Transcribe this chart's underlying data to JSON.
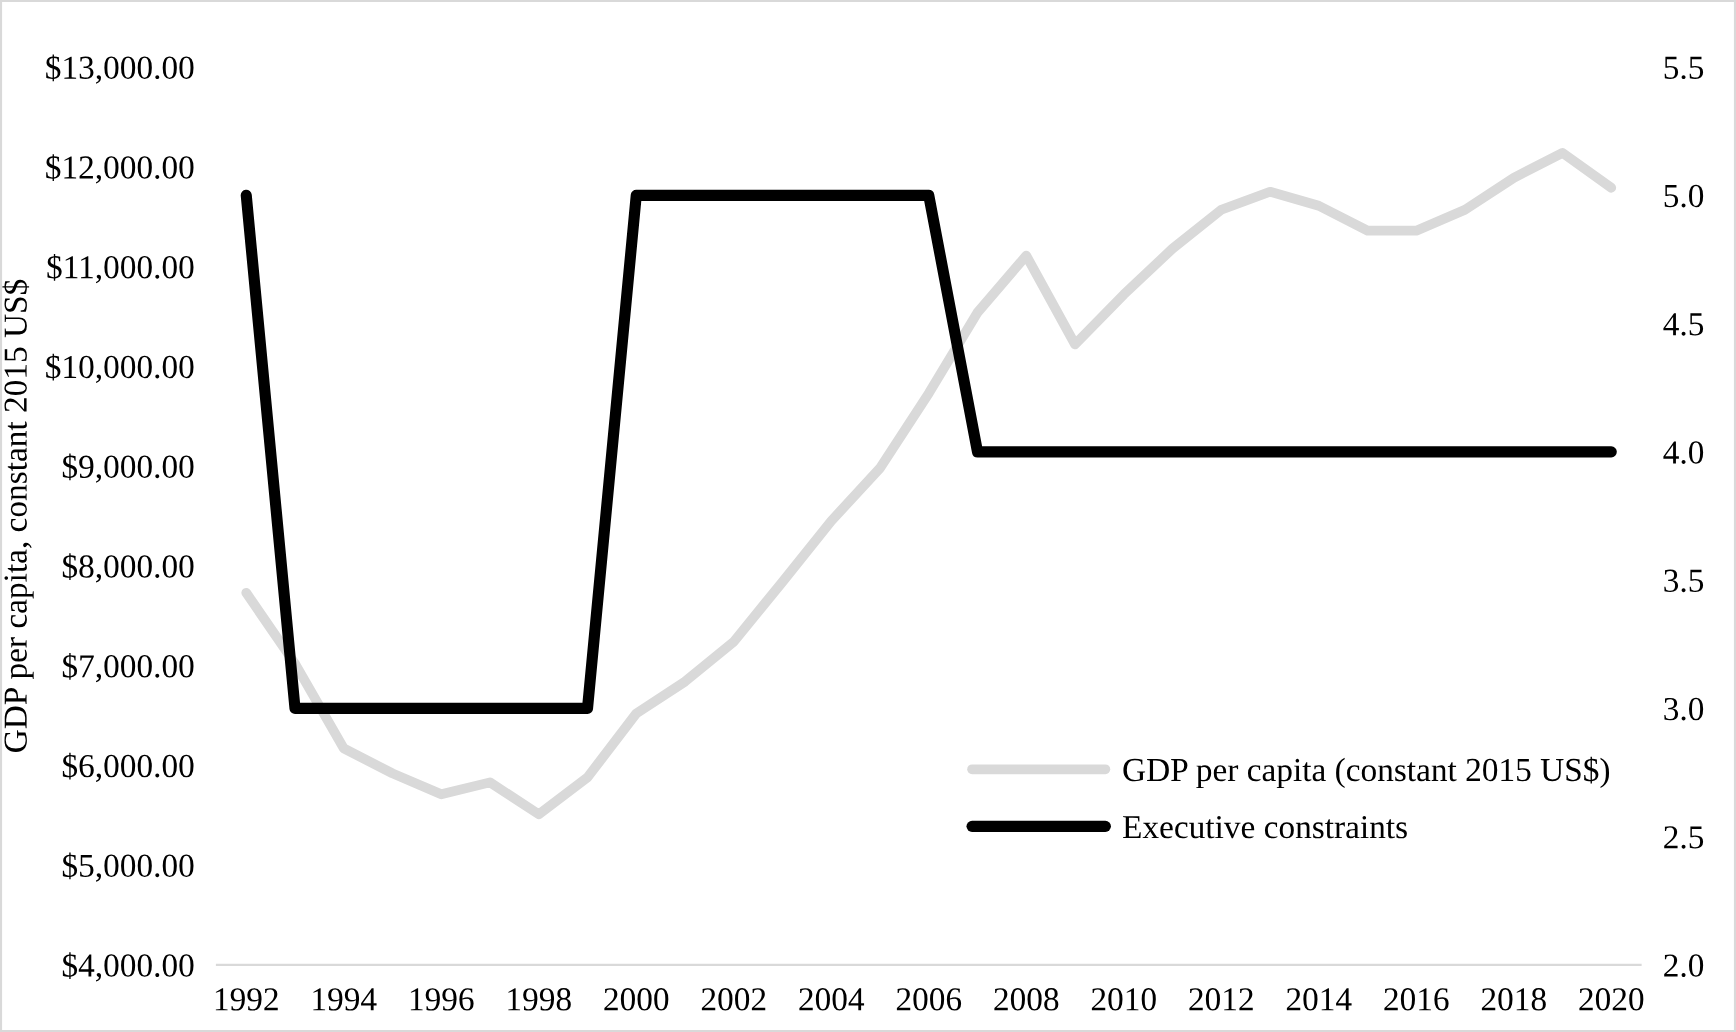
{
  "chart_data": {
    "type": "line",
    "ylabel": "GDP per capita, constant 2015 US$",
    "x": [
      1992,
      1993,
      1994,
      1995,
      1996,
      1997,
      1998,
      1999,
      2000,
      2001,
      2002,
      2003,
      2004,
      2005,
      2006,
      2007,
      2008,
      2009,
      2010,
      2011,
      2012,
      2013,
      2014,
      2015,
      2016,
      2017,
      2018,
      2019,
      2020
    ],
    "xlim": [
      1991.4,
      2020.6
    ],
    "xticks": [
      1992,
      1994,
      1996,
      1998,
      2000,
      2002,
      2004,
      2006,
      2008,
      2010,
      2012,
      2014,
      2016,
      2018,
      2020
    ],
    "ylim": [
      4000,
      13000
    ],
    "yticks": [
      {
        "value": 4000,
        "label": "$4,000.00"
      },
      {
        "value": 5000,
        "label": "$5,000.00"
      },
      {
        "value": 6000,
        "label": "$6,000.00"
      },
      {
        "value": 7000,
        "label": "$7,000.00"
      },
      {
        "value": 8000,
        "label": "$8,000.00"
      },
      {
        "value": 9000,
        "label": "$9,000.00"
      },
      {
        "value": 10000,
        "label": "$10,000.00"
      },
      {
        "value": 11000,
        "label": "$11,000.00"
      },
      {
        "value": 12000,
        "label": "$12,000.00"
      },
      {
        "value": 13000,
        "label": "$13,000.00"
      }
    ],
    "y2lim": [
      2.0,
      5.5
    ],
    "y2ticks": [
      {
        "value": 2.0,
        "label": "2.0"
      },
      {
        "value": 2.5,
        "label": "2.5"
      },
      {
        "value": 3.0,
        "label": "3.0"
      },
      {
        "value": 3.5,
        "label": "3.5"
      },
      {
        "value": 4.0,
        "label": "4.0"
      },
      {
        "value": 4.5,
        "label": "4.5"
      },
      {
        "value": 5.0,
        "label": "5.0"
      },
      {
        "value": 5.5,
        "label": "5.5"
      }
    ],
    "series": [
      {
        "name": "GDP per capita (constant 2015 US$)",
        "color": "#d9d9d9",
        "values": [
          7730,
          7020,
          6170,
          5920,
          5710,
          5830,
          5510,
          5880,
          6520,
          6840,
          7240,
          7840,
          8450,
          8980,
          9730,
          10540,
          11110,
          10220,
          10720,
          11180,
          11570,
          11750,
          11610,
          11360,
          11360,
          11570,
          11890,
          12140,
          11790
        ]
      },
      {
        "name": "Executive constraints",
        "color": "#000000",
        "axis": "y2",
        "values": [
          5,
          3,
          3,
          3,
          3,
          3,
          3,
          3,
          5,
          5,
          5,
          5,
          5,
          5,
          5,
          4,
          4,
          4,
          4,
          4,
          4,
          4,
          4,
          4,
          4,
          4,
          4,
          4,
          4
        ]
      }
    ],
    "grid": false,
    "legend": "bottom right",
    "marker": "none",
    "line_style": "solid"
  }
}
